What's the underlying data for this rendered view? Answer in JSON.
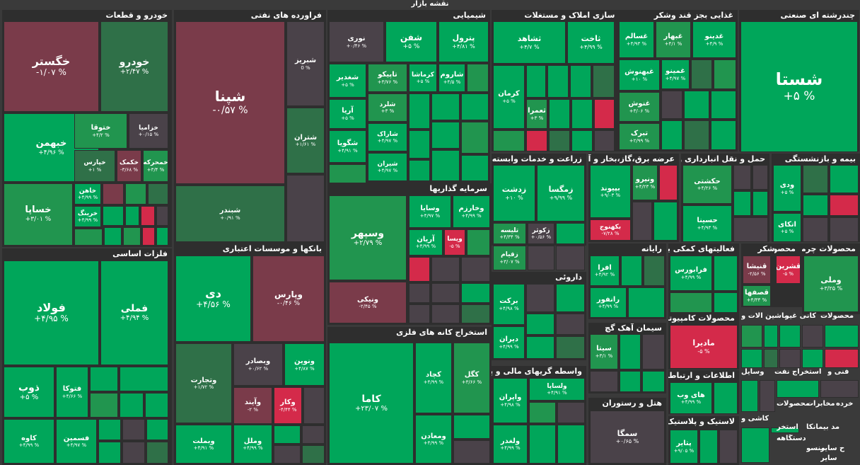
{
  "title": "نقشه بازار",
  "colors": {
    "up_strong": "#00a65a",
    "up_mid": "#21954f",
    "up_weak": "#2f7048",
    "neutral": "#4a4249",
    "down_weak": "#7a3b4a",
    "down_strong": "#d42a4a"
  },
  "chart_data": {
    "type": "heatmap",
    "title": "نقشه بازار",
    "value_label": "%",
    "sectors": [
      {
        "name": "خودرو و قطعات",
        "stocks": [
          {
            "name": "خگستر",
            "change": -1.07
          },
          {
            "name": "خودرو",
            "change": 2.47
          },
          {
            "name": "خبهمن",
            "change": 4.96
          },
          {
            "name": "ختوقا",
            "change": 4.2
          },
          {
            "name": "خزامیا",
            "change": 0.15
          },
          {
            "name": "خپارس",
            "change": 1
          },
          {
            "name": "خکمک",
            "change": -3.68
          },
          {
            "name": "خمحرکه",
            "change": 3.4
          },
          {
            "name": "خساپا",
            "change": 3.01
          },
          {
            "name": "خاهن",
            "change": 4.99
          },
          {
            "name": "خرینگ",
            "change": 4.99
          }
        ]
      },
      {
        "name": "فراورده های نفتی",
        "stocks": [
          {
            "name": "شپنا",
            "change": -0.57
          },
          {
            "name": "شبریز",
            "change": 0
          },
          {
            "name": "شتران",
            "change": 1.61
          },
          {
            "name": "شبندر",
            "change": 0.91
          }
        ]
      },
      {
        "name": "شیمیایی",
        "stocks": [
          {
            "name": "پترول",
            "change": 4.81
          },
          {
            "name": "شفن",
            "change": 5
          },
          {
            "name": "نوری",
            "change": 0.46
          },
          {
            "name": "شاروم",
            "change": 4.5
          },
          {
            "name": "کرماشا",
            "change": 5
          },
          {
            "name": "تاپیکو",
            "change": 3.76
          },
          {
            "name": "شغدیر",
            "change": 5
          },
          {
            "name": "شلرد",
            "change": 3
          },
          {
            "name": "آریا",
            "change": 5
          },
          {
            "name": "شاراک",
            "change": 4.97
          },
          {
            "name": "شگویا",
            "change": 4.91
          },
          {
            "name": "شیران",
            "change": 4.97
          }
        ]
      },
      {
        "name": "انبوه سازی املاک و مستغلات",
        "stocks": [
          {
            "name": "ثشاهد",
            "change": 4.7
          },
          {
            "name": "ثاخت",
            "change": 4.99
          },
          {
            "name": "کرمان",
            "change": 5
          },
          {
            "name": "ثعمرا",
            "change": 3
          }
        ]
      },
      {
        "name": "غذایی بجز قند وشکر",
        "stocks": [
          {
            "name": "غسالم",
            "change": 4.93
          },
          {
            "name": "غبهار",
            "change": 4.1
          },
          {
            "name": "غدینو",
            "change": 4.9
          },
          {
            "name": "غبهنوش",
            "change": 10
          },
          {
            "name": "غمینو",
            "change": 4.97
          },
          {
            "name": "غنوش",
            "change": 3.06
          },
          {
            "name": "تبرک",
            "change": 2.99
          }
        ]
      },
      {
        "name": "چندرشته ای صنعتی",
        "stocks": [
          {
            "name": "شستا",
            "change": 5
          },
          {
            "name": "ودی",
            "change": 5
          },
          {
            "name": "اتکای",
            "change": 5
          }
        ]
      },
      {
        "name": "زراعت و خدمات وابسته",
        "stocks": [
          {
            "name": "زدشت",
            "change": 10
          },
          {
            "name": "زمگسا",
            "change": 9.99
          },
          {
            "name": "تلیسه",
            "change": 4.34
          },
          {
            "name": "زکوثر",
            "change": 0.56
          },
          {
            "name": "زقیام",
            "change": 3.07
          }
        ]
      },
      {
        "name": "عرضه برق،گاز،بخار و آب گرم",
        "stocks": [
          {
            "name": "بپیوند",
            "change": 9.03
          },
          {
            "name": "ونیرو",
            "change": 4.23
          },
          {
            "name": "بکهنوج",
            "change": -7.28
          }
        ]
      },
      {
        "name": "حمل و نقل انبارداری و",
        "stocks": [
          {
            "name": "حکشتی",
            "change": 4.26
          },
          {
            "name": "حسینا",
            "change": 4.93
          }
        ]
      },
      {
        "name": "بیمه و بازنشستگی",
        "stocks": []
      },
      {
        "name": "سرمایه گذاریها",
        "stocks": [
          {
            "name": "وسپهر",
            "change": 2.79
          },
          {
            "name": "وسایا",
            "change": 4.97
          },
          {
            "name": "وخارزم",
            "change": 4.99
          },
          {
            "name": "آریان",
            "change": 4.99
          },
          {
            "name": "ویسا",
            "change": -5
          },
          {
            "name": "ونیکی",
            "change": -2.45
          }
        ]
      },
      {
        "name": "فلزات اساسی",
        "stocks": [
          {
            "name": "فولاد",
            "change": 4.95
          },
          {
            "name": "فملی",
            "change": 4.94
          },
          {
            "name": "ذوب",
            "change": 5
          },
          {
            "name": "فتوکا",
            "change": 4.66
          },
          {
            "name": "کاوه",
            "change": 4.99
          },
          {
            "name": "فسمین",
            "change": 4.97
          }
        ]
      },
      {
        "name": "بانکها و موسسات اعتباری",
        "stocks": [
          {
            "name": "دی",
            "change": 4.56
          },
          {
            "name": "وپارس",
            "change": -0.46
          },
          {
            "name": "وتجارت",
            "change": 1.72
          },
          {
            "name": "وبصادر",
            "change": 0.62
          },
          {
            "name": "ونوین",
            "change": 4.87
          },
          {
            "name": "وآیند",
            "change": -2
          },
          {
            "name": "وکار",
            "change": -4.44
          },
          {
            "name": "وبملت",
            "change": 4.91
          },
          {
            "name": "وملل",
            "change": 4.99
          }
        ]
      },
      {
        "name": "استخراج کانه های فلزی",
        "stocks": [
          {
            "name": "کاما",
            "change": 23.07
          },
          {
            "name": "کچاد",
            "change": 4.99
          },
          {
            "name": "کگل",
            "change": 3.66
          },
          {
            "name": "ومعادن",
            "change": 4.99
          }
        ]
      },
      {
        "name": "داروئی",
        "stocks": [
          {
            "name": "برکت",
            "change": 4.98
          },
          {
            "name": "دیران",
            "change": 4.99
          }
        ]
      },
      {
        "name": "واسطه گریهای مالی و پولی",
        "stocks": [
          {
            "name": "ولساپا",
            "change": 4.91
          },
          {
            "name": "واپران",
            "change": 4.98
          },
          {
            "name": "ولغدر",
            "change": 4.99
          }
        ]
      },
      {
        "name": "رایانه",
        "stocks": [
          {
            "name": "افرا",
            "change": 4.92
          },
          {
            "name": "رانفور",
            "change": 4.99
          }
        ]
      },
      {
        "name": "سیمان آهک گچ",
        "stocks": [
          {
            "name": "سیتا",
            "change": 3.1
          }
        ]
      },
      {
        "name": "هتل و رستوران",
        "stocks": [
          {
            "name": "سمگا",
            "change": 0.65
          }
        ]
      },
      {
        "name": "فعالیتهای کمکی به",
        "stocks": [
          {
            "name": "فرابورس",
            "change": 4.99
          }
        ]
      },
      {
        "name": "قند و شکر",
        "stocks": [
          {
            "name": "قنیشا",
            "change": -2.56
          },
          {
            "name": "قصفها",
            "change": 4.33
          }
        ]
      },
      {
        "name": "محصولات شیمیایی",
        "stocks": [
          {
            "name": "قشرین",
            "change": -5
          }
        ]
      },
      {
        "name": "محصولات چرمی",
        "stocks": [
          {
            "name": "وملی",
            "change": 3.25
          }
        ]
      },
      {
        "name": "محصولات کامپیوتری",
        "stocks": [
          {
            "name": "مادیرا",
            "change": -5
          }
        ]
      },
      {
        "name": "اطلاعات و ارتباطات",
        "stocks": [
          {
            "name": "های وب",
            "change": 4.99
          }
        ]
      },
      {
        "name": "لاستیک و پلاستیک",
        "stocks": [
          {
            "name": "پتایر",
            "change": 9.05
          }
        ]
      }
    ],
    "extra_sector_labels": [
      "ماشین آلات و",
      "کانی غیر",
      "محصولات",
      "وسایل",
      "استخراج نفت",
      "فنی و",
      "کاشی و",
      "محصولات",
      "مخابرات",
      "خرده",
      "مد بیمانکا",
      "استخر",
      "دستگاهه",
      "ح سایر",
      "منسو",
      "سایر"
    ]
  }
}
